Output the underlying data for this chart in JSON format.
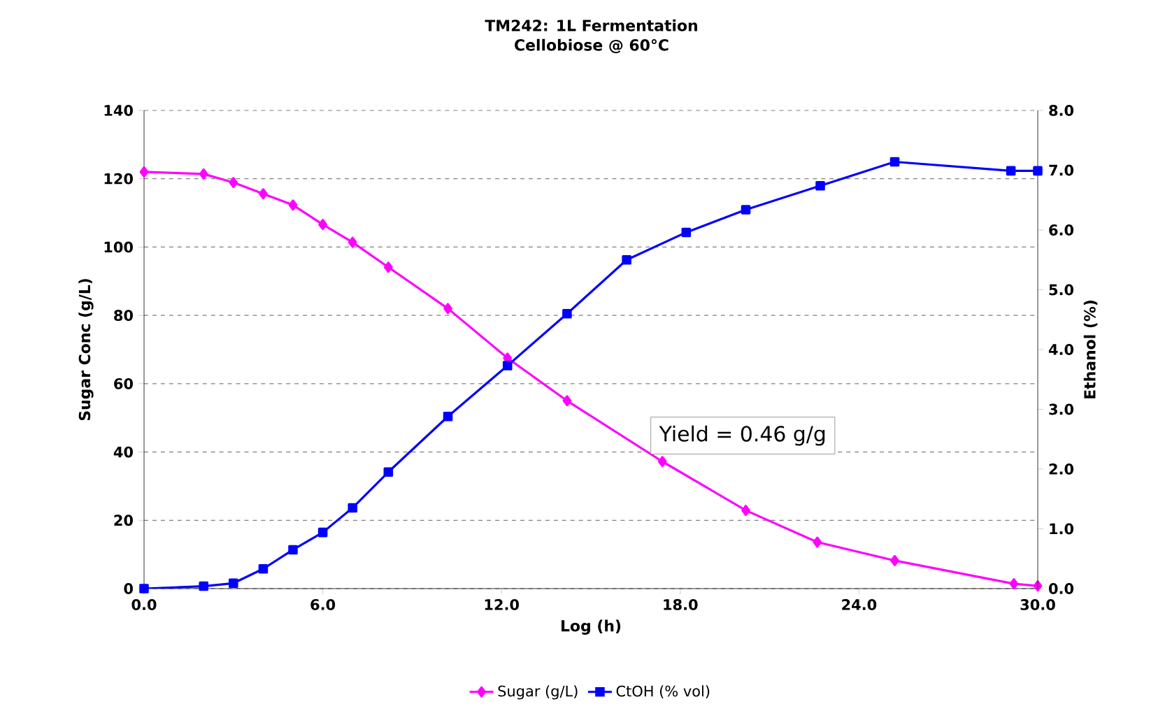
{
  "chart_data": {
    "type": "line",
    "title": "TM242: 1L Fermentation",
    "subtitle": "Cellobiose @ 60°C",
    "xlabel": "Log (h)",
    "ylabel": "Sugar Conc (g/L)",
    "y2label": "Ethanol (%)",
    "annotations": [
      "Yield = 0.46 g/g"
    ],
    "xlim": [
      0,
      30
    ],
    "xticks": [
      {
        "value": 0,
        "label": "0.0"
      },
      {
        "value": 6,
        "label": "6.0"
      },
      {
        "value": 12,
        "label": "12.0"
      },
      {
        "value": 18,
        "label": "18.0"
      },
      {
        "value": 24,
        "label": "24.0"
      },
      {
        "value": 30,
        "label": "30.0"
      }
    ],
    "ylim": [
      0,
      140
    ],
    "yticks": [
      0,
      20,
      40,
      60,
      80,
      100,
      120,
      140
    ],
    "y2lim": [
      0,
      8
    ],
    "y2ticks": [
      {
        "value": 0,
        "label": "0.0"
      },
      {
        "value": 1,
        "label": "1.0"
      },
      {
        "value": 2,
        "label": "2.0"
      },
      {
        "value": 3,
        "label": "3.0"
      },
      {
        "value": 4,
        "label": "4.0"
      },
      {
        "value": 5,
        "label": "5.0"
      },
      {
        "value": 6,
        "label": "6.0"
      },
      {
        "value": 7,
        "label": "7.0"
      },
      {
        "value": 8,
        "label": "8.0"
      }
    ],
    "grid": "y",
    "legend": "bottom",
    "line_style": "solid",
    "series": [
      {
        "name": "Sugar (g/L)",
        "color": "#ff00ff",
        "marker": "diamond",
        "x": [
          0,
          2,
          3,
          4,
          5,
          6,
          7,
          8.2,
          10.2,
          12.2,
          14.2,
          17.4,
          20.2,
          22.6,
          25.2,
          29.2,
          30
        ],
        "values": [
          122,
          121.4,
          118.9,
          115.6,
          112.3,
          106.6,
          101.4,
          94.1,
          82,
          67.5,
          55,
          37.2,
          22.9,
          13.6,
          8.2,
          1.4,
          0.8
        ]
      },
      {
        "name": "CtOH (% vol)",
        "color": "#0000ff",
        "marker": "square",
        "axis": "y2",
        "x": [
          0,
          2,
          3,
          4,
          5,
          6,
          7,
          8.2,
          10.2,
          12.2,
          14.2,
          16.2,
          18.2,
          20.2,
          22.7,
          25.2,
          29.1,
          30
        ],
        "values": [
          0,
          0.04,
          0.09,
          0.33,
          0.65,
          0.94,
          1.35,
          1.95,
          2.88,
          3.73,
          4.6,
          5.5,
          5.96,
          6.34,
          6.74,
          7.14,
          6.99,
          6.99
        ]
      }
    ]
  }
}
